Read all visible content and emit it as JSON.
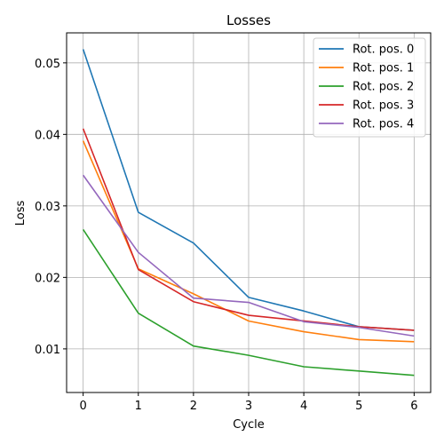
{
  "chart_data": {
    "type": "line",
    "title": "Losses",
    "xlabel": "Cycle",
    "ylabel": "Loss",
    "x": [
      0,
      1,
      2,
      3,
      4,
      5,
      6
    ],
    "xlim": [
      -0.3,
      6.3
    ],
    "ylim": [
      0.0039,
      0.0542
    ],
    "xticks": [
      "0",
      "1",
      "2",
      "3",
      "4",
      "5",
      "6"
    ],
    "yticks": [
      0.01,
      0.02,
      0.03,
      0.04,
      0.05
    ],
    "ytick_labels": [
      "0.01",
      "0.02",
      "0.03",
      "0.04",
      "0.05"
    ],
    "grid": true,
    "legend_position": "top-right",
    "series": [
      {
        "name": "Rot. pos. 0",
        "color": "#1f77b4",
        "values": [
          0.0519,
          0.0291,
          0.0248,
          0.0172,
          0.0153,
          0.0131,
          0.0126
        ]
      },
      {
        "name": "Rot. pos. 1",
        "color": "#ff7f0e",
        "values": [
          0.0391,
          0.0212,
          0.0177,
          0.0139,
          0.0124,
          0.0113,
          0.011
        ]
      },
      {
        "name": "Rot. pos. 2",
        "color": "#2ca02c",
        "values": [
          0.0267,
          0.015,
          0.0104,
          0.0091,
          0.0075,
          0.0069,
          0.0063
        ]
      },
      {
        "name": "Rot. pos. 3",
        "color": "#d62728",
        "values": [
          0.0408,
          0.0211,
          0.0166,
          0.0147,
          0.0139,
          0.0131,
          0.0126
        ]
      },
      {
        "name": "Rot. pos. 4",
        "color": "#9467bd",
        "values": [
          0.0343,
          0.0235,
          0.0171,
          0.0165,
          0.0138,
          0.013,
          0.0118
        ]
      }
    ]
  }
}
